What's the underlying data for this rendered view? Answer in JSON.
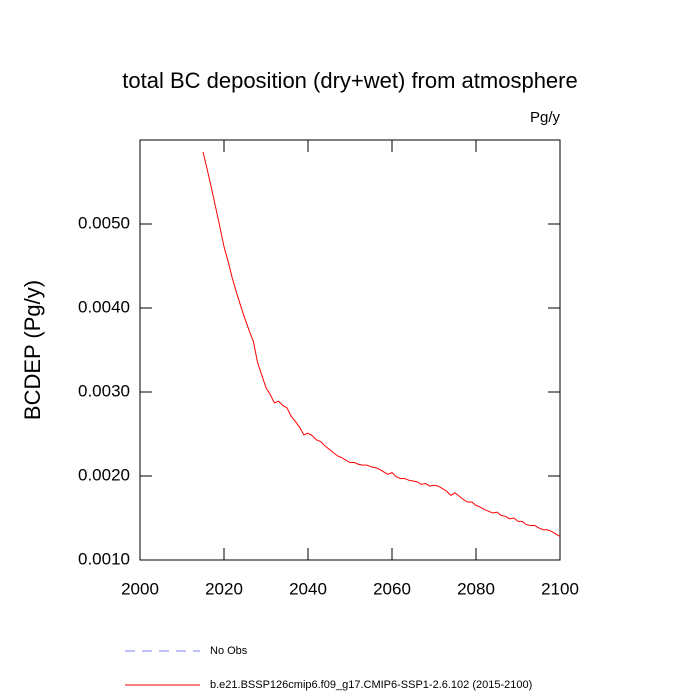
{
  "chart_data": {
    "type": "line",
    "title": "total BC deposition (dry+wet) from atmosphere",
    "units": "Pg/y",
    "y_label": "BCDEP  (Pg/y)",
    "x": [
      2015,
      2016,
      2017,
      2018,
      2019,
      2020,
      2021,
      2022,
      2023,
      2024,
      2025,
      2026,
      2027,
      2028,
      2029,
      2030,
      2031,
      2032,
      2033,
      2034,
      2035,
      2036,
      2037,
      2038,
      2039,
      2040,
      2041,
      2042,
      2043,
      2044,
      2045,
      2046,
      2047,
      2048,
      2049,
      2050,
      2051,
      2052,
      2053,
      2054,
      2055,
      2056,
      2057,
      2058,
      2059,
      2060,
      2061,
      2062,
      2063,
      2064,
      2065,
      2066,
      2067,
      2068,
      2069,
      2070,
      2071,
      2072,
      2073,
      2074,
      2075,
      2076,
      2077,
      2078,
      2079,
      2080,
      2081,
      2082,
      2083,
      2084,
      2085,
      2086,
      2087,
      2088,
      2089,
      2090,
      2091,
      2092,
      2093,
      2094,
      2095,
      2096,
      2097,
      2098,
      2099,
      2100
    ],
    "series": [
      {
        "name": "b.e21.BSSP126cmip6.f09_g17.CMIP6-SSP1-2.6.102 (2015-2100)",
        "color": "#ff0000",
        "values": [
          0.005857,
          0.00565,
          0.00543,
          0.0052,
          0.00497,
          0.00473,
          0.00455,
          0.00435,
          0.00418,
          0.00402,
          0.00387,
          0.00373,
          0.0036,
          0.00335,
          0.0032,
          0.00305,
          0.00297,
          0.00287,
          0.00289,
          0.00284,
          0.00281,
          0.00271,
          0.00265,
          0.00258,
          0.00249,
          0.00251,
          0.00248,
          0.00243,
          0.00241,
          0.00236,
          0.00232,
          0.00228,
          0.00224,
          0.00222,
          0.00219,
          0.00216,
          0.00216,
          0.00214,
          0.00213,
          0.00213,
          0.00211,
          0.0021,
          0.00208,
          0.00205,
          0.00202,
          0.00204,
          0.00199,
          0.00197,
          0.00197,
          0.00195,
          0.00194,
          0.00193,
          0.0019,
          0.00191,
          0.00188,
          0.00189,
          0.00188,
          0.00185,
          0.00182,
          0.00177,
          0.0018,
          0.00176,
          0.00172,
          0.00169,
          0.00169,
          0.00165,
          0.00163,
          0.0016,
          0.00158,
          0.00156,
          0.00157,
          0.00153,
          0.00152,
          0.00149,
          0.0015,
          0.00146,
          0.00146,
          0.00142,
          0.00141,
          0.00141,
          0.00138,
          0.00136,
          0.00136,
          0.00134,
          0.00131,
          0.00128
        ]
      }
    ],
    "reference": {
      "name": "No Obs",
      "color": "#8080ff"
    },
    "xlim": [
      2000,
      2100
    ],
    "xticks": [
      2000,
      2020,
      2040,
      2060,
      2080,
      2100
    ],
    "ylim": [
      0.001,
      0.006
    ],
    "yticks": [
      {
        "value": 0.001,
        "label": "0.0010"
      },
      {
        "value": 0.002,
        "label": "0.0020"
      },
      {
        "value": 0.003,
        "label": "0.0030"
      },
      {
        "value": 0.004,
        "label": "0.0040"
      },
      {
        "value": 0.005,
        "label": "0.0050"
      }
    ],
    "grid": false
  }
}
